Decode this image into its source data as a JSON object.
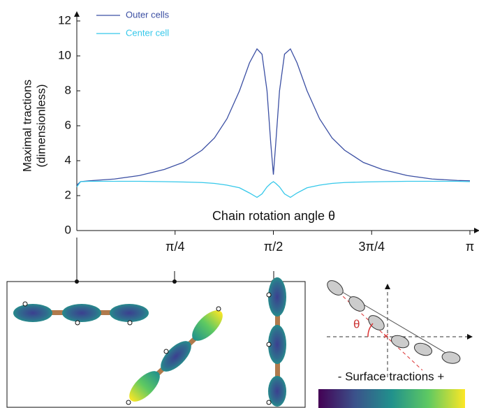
{
  "chart_data": {
    "type": "line",
    "ylabel": [
      "Maximal tractions",
      "(dimensionless)"
    ],
    "xlabel": "Chain rotation angle θ",
    "x": [
      0,
      0.03,
      0.1,
      0.3,
      0.5,
      0.7,
      0.85,
      1.0,
      1.1,
      1.2,
      1.3,
      1.38,
      1.44,
      1.48,
      1.52,
      1.55,
      1.571,
      1.59,
      1.62,
      1.66,
      1.707,
      1.76,
      1.84,
      1.94,
      2.04,
      2.14,
      2.29,
      2.44,
      2.64,
      2.84,
      3.04,
      3.1416
    ],
    "series": [
      {
        "name": "Outer cells",
        "color": "#3b4fa3",
        "values": [
          2.6,
          2.8,
          2.85,
          2.95,
          3.15,
          3.5,
          3.9,
          4.6,
          5.3,
          6.4,
          8.0,
          9.6,
          10.4,
          10.1,
          8.0,
          5.0,
          3.2,
          5.0,
          8.0,
          10.1,
          10.4,
          9.6,
          8.0,
          6.4,
          5.3,
          4.6,
          3.9,
          3.5,
          3.15,
          2.95,
          2.87,
          2.85
        ]
      },
      {
        "name": "Center cell",
        "color": "#35c8ea",
        "values": [
          2.5,
          2.8,
          2.82,
          2.82,
          2.82,
          2.8,
          2.78,
          2.75,
          2.7,
          2.6,
          2.45,
          2.15,
          1.9,
          2.1,
          2.5,
          2.7,
          2.8,
          2.7,
          2.5,
          2.1,
          1.9,
          2.15,
          2.45,
          2.6,
          2.7,
          2.75,
          2.78,
          2.8,
          2.82,
          2.82,
          2.82,
          2.8
        ]
      }
    ],
    "xlim": [
      0,
      3.1416
    ],
    "ylim": [
      0,
      12
    ],
    "xticks": [
      {
        "value": 0.7854,
        "label": "π/4"
      },
      {
        "value": 1.5708,
        "label": "π/2"
      },
      {
        "value": 2.3562,
        "label": "3π/4"
      },
      {
        "value": 3.1416,
        "label": "π"
      }
    ],
    "yticks": [
      0,
      2,
      4,
      6,
      8,
      10,
      12
    ],
    "legend": "upper-left",
    "grid": false
  },
  "figure": {
    "angle_symbol": "θ",
    "colorbar_label": "- Surface tractions +"
  }
}
